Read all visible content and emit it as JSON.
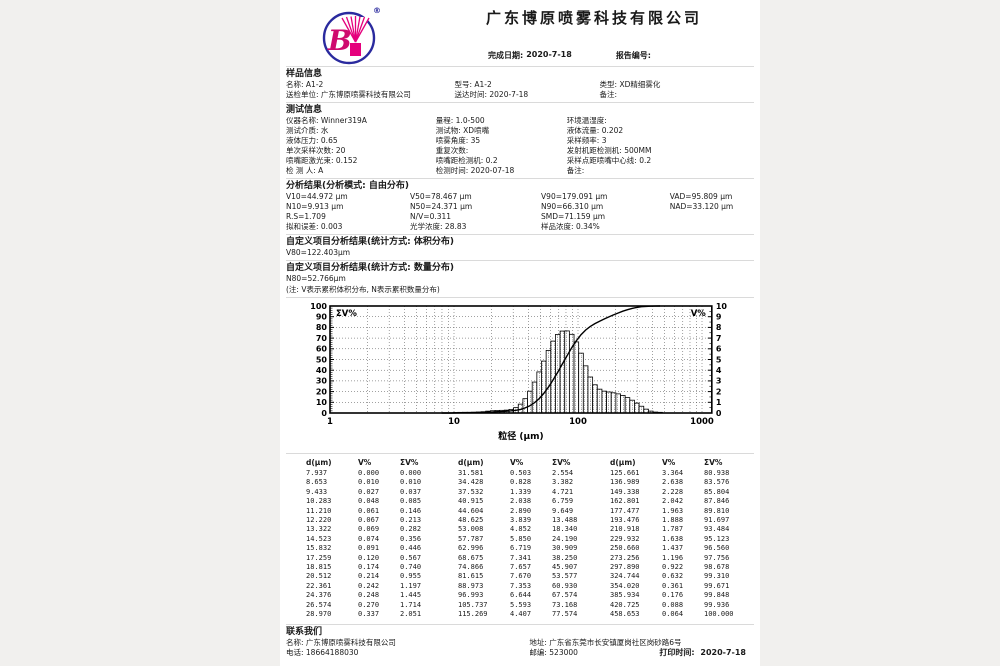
{
  "header": {
    "company": "广东博原喷雾科技有限公司",
    "logo_letter": "B",
    "registered_mark": "®",
    "finish_date_label": "完成日期:",
    "finish_date": "2020-7-18",
    "report_no_label": "报告编号:",
    "report_no": ""
  },
  "sample_info": {
    "title": "样品信息",
    "rows": [
      [
        {
          "label": "名称:",
          "value": "A1-2"
        },
        {
          "label": "型号:",
          "value": "A1-2"
        },
        {
          "label": "类型:",
          "value": "XD精细雾化"
        }
      ],
      [
        {
          "label": "送检单位:",
          "value": "广东博原喷雾科技有限公司"
        },
        {
          "label": "送达时间:",
          "value": "2020-7-18"
        },
        {
          "label": "备注:",
          "value": ""
        }
      ]
    ]
  },
  "test_info": {
    "title": "测试信息",
    "columns": [
      [
        {
          "label": "仪器名称:",
          "value": "Winner319A"
        },
        {
          "label": "测试介质:",
          "value": "水"
        },
        {
          "label": "液体压力:",
          "value": "0.65"
        },
        {
          "label": "单次采样次数:",
          "value": "20"
        },
        {
          "label": "喷嘴距激光束:",
          "value": "0.152"
        },
        {
          "label": "检 测 人:",
          "value": "A"
        }
      ],
      [
        {
          "label": "量程:",
          "value": "1.0-500"
        },
        {
          "label": "测试物:",
          "value": "XD喷嘴"
        },
        {
          "label": "喷雾角度:",
          "value": "35"
        },
        {
          "label": "重复次数:",
          "value": ""
        },
        {
          "label": "喷嘴距检测机:",
          "value": "0.2"
        },
        {
          "label": "检测时间:",
          "value": "2020-07-18"
        }
      ],
      [
        {
          "label": "环境温湿度:",
          "value": ""
        },
        {
          "label": "液体流量:",
          "value": "0.202"
        },
        {
          "label": "采样频率:",
          "value": "3"
        },
        {
          "label": "发射机距检测机:",
          "value": "500MM"
        },
        {
          "label": "采样点距喷嘴中心线:",
          "value": "0.2"
        },
        {
          "label": "备注:",
          "value": ""
        }
      ]
    ]
  },
  "analysis": {
    "title": "分析结果(分析模式: 自由分布)",
    "rows": [
      [
        "V10=44.972 μm",
        "V50=78.467 μm",
        "V90=179.091 μm",
        "VAD=95.809 μm"
      ],
      [
        "N10=9.913 μm",
        "N50=24.371 μm",
        "N90=66.310 μm",
        "NAD=33.120 μm"
      ],
      [
        "R.S=1.709",
        "N/V=0.311",
        "SMD=71.159 μm",
        ""
      ],
      [
        "拟和误差: 0.003",
        "光学浓度: 28.83",
        "样品浓度: 0.34%",
        ""
      ]
    ]
  },
  "custom_v": {
    "title": "自定义项目分析结果(统计方式: 体积分布)",
    "value": "V80=122.403μm"
  },
  "custom_n": {
    "title": "自定义项目分析结果(统计方式: 数量分布)",
    "value": "N80=52.766μm",
    "note": "(注: V表示累积体积分布, N表示累积数量分布)"
  },
  "chart_data": {
    "type": "bar",
    "subtype": "log-histogram with cumulative line",
    "title": "",
    "xlabel": "粒径 (μm)",
    "x_scale": "log",
    "x_range": [
      1,
      1200
    ],
    "x_ticks": [
      1,
      10,
      100,
      1000
    ],
    "left_axis": {
      "label": "ΣV%",
      "range": [
        0,
        100
      ],
      "tick_step": 10
    },
    "right_axis": {
      "label": "V%",
      "range": [
        0,
        10
      ],
      "tick_step": 1
    },
    "grid": "dotted",
    "x": [
      7.937,
      8.653,
      9.433,
      10.283,
      11.21,
      12.22,
      13.322,
      14.523,
      15.832,
      17.259,
      18.815,
      20.512,
      22.361,
      24.376,
      26.574,
      28.97,
      31.581,
      34.428,
      37.532,
      40.915,
      44.604,
      48.625,
      53.008,
      57.787,
      62.996,
      68.675,
      74.866,
      81.615,
      88.973,
      96.993,
      105.737,
      115.269,
      125.661,
      136.989,
      149.338,
      162.801,
      177.477,
      193.476,
      210.918,
      229.932,
      250.66,
      273.256,
      297.89,
      324.744,
      354.02,
      385.934,
      420.725,
      458.653
    ],
    "series": [
      {
        "name": "V%",
        "type": "bar",
        "axis": "right",
        "values": [
          0.0,
          0.01,
          0.027,
          0.048,
          0.061,
          0.067,
          0.069,
          0.074,
          0.091,
          0.12,
          0.174,
          0.214,
          0.242,
          0.248,
          0.27,
          0.337,
          0.503,
          0.828,
          1.339,
          2.038,
          2.89,
          3.839,
          4.852,
          5.85,
          6.719,
          7.341,
          7.657,
          7.67,
          7.353,
          6.644,
          5.593,
          4.407,
          3.364,
          2.638,
          2.228,
          2.042,
          1.963,
          1.888,
          1.787,
          1.638,
          1.437,
          1.196,
          0.922,
          0.632,
          0.361,
          0.176,
          0.088,
          0.064
        ]
      },
      {
        "name": "ΣV%",
        "type": "line",
        "axis": "left",
        "values": [
          0.0,
          0.01,
          0.037,
          0.085,
          0.146,
          0.213,
          0.282,
          0.356,
          0.446,
          0.567,
          0.74,
          0.955,
          1.197,
          1.445,
          1.714,
          2.051,
          2.554,
          3.382,
          4.721,
          6.759,
          9.649,
          13.488,
          18.34,
          24.19,
          30.909,
          38.25,
          45.907,
          53.577,
          60.93,
          67.574,
          73.168,
          77.574,
          80.938,
          83.576,
          85.804,
          87.846,
          89.81,
          91.697,
          93.484,
          95.123,
          96.56,
          97.756,
          98.678,
          99.31,
          99.671,
          99.848,
          99.936,
          100.0
        ]
      }
    ]
  },
  "table": {
    "headers": [
      "d(μm)",
      "V%",
      "ΣV%"
    ],
    "groups": 3,
    "rows_per_group": 16
  },
  "contact": {
    "title": "联系我们",
    "rows": [
      [
        {
          "label": "名称:",
          "value": "广东博原喷雾科技有限公司"
        },
        {
          "label": "地址:",
          "value": "广东省东莞市长安镇厦岗社区岗砂路6号"
        }
      ],
      [
        {
          "label": "电话:",
          "value": "18664188030"
        },
        {
          "label": "邮编:",
          "value": "523000"
        }
      ]
    ]
  },
  "footer": {
    "print_label": "打印时间:",
    "print_time": "2020-7-18"
  }
}
